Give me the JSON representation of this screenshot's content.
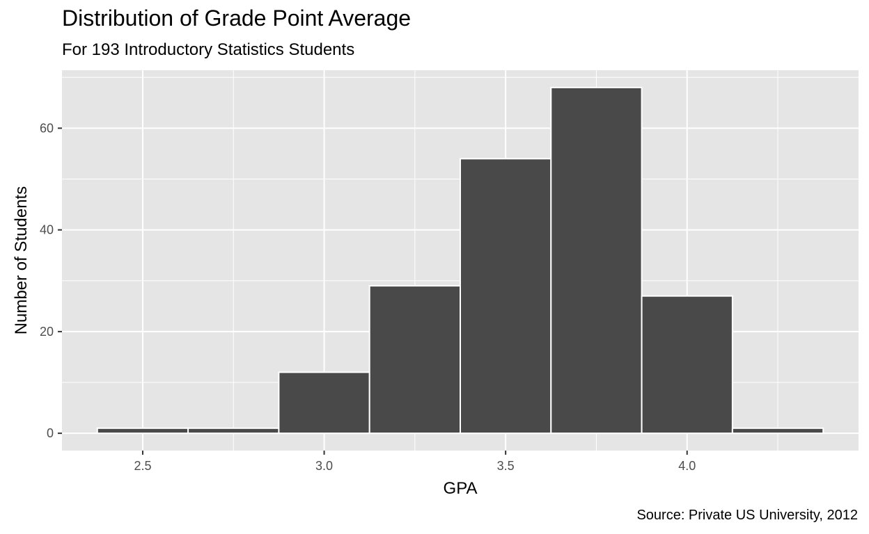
{
  "chart_data": {
    "type": "bar",
    "title": "Distribution of Grade Point Average",
    "subtitle": "For 193 Introductory Statistics Students",
    "caption": "Source: Private US University, 2012",
    "xlabel": "GPA",
    "ylabel": "Number of Students",
    "bin_width": 0.25,
    "bins": [
      {
        "x_start": 2.375,
        "x_end": 2.625,
        "count": 1
      },
      {
        "x_start": 2.625,
        "x_end": 2.875,
        "count": 1
      },
      {
        "x_start": 2.875,
        "x_end": 3.125,
        "count": 12
      },
      {
        "x_start": 3.125,
        "x_end": 3.375,
        "count": 29
      },
      {
        "x_start": 3.375,
        "x_end": 3.625,
        "count": 54
      },
      {
        "x_start": 3.625,
        "x_end": 3.875,
        "count": 68
      },
      {
        "x_start": 3.875,
        "x_end": 4.125,
        "count": 27
      },
      {
        "x_start": 4.125,
        "x_end": 4.375,
        "count": 1
      }
    ],
    "x_ticks": [
      "2.5",
      "3.0",
      "3.5",
      "4.0"
    ],
    "x_tick_values": [
      2.5,
      3.0,
      3.5,
      4.0
    ],
    "y_ticks": [
      "0",
      "20",
      "40",
      "60"
    ],
    "y_tick_values": [
      0,
      20,
      40,
      60
    ],
    "xlim": [
      2.2775,
      4.4725
    ],
    "ylim": [
      -3.4,
      71.4
    ],
    "grid": true,
    "colors": {
      "panel": "#e5e5e5",
      "grid": "#ffffff",
      "bar_fill": "#494949",
      "bar_outline": "#ffffff",
      "tick_text": "#4d4d4d"
    }
  }
}
